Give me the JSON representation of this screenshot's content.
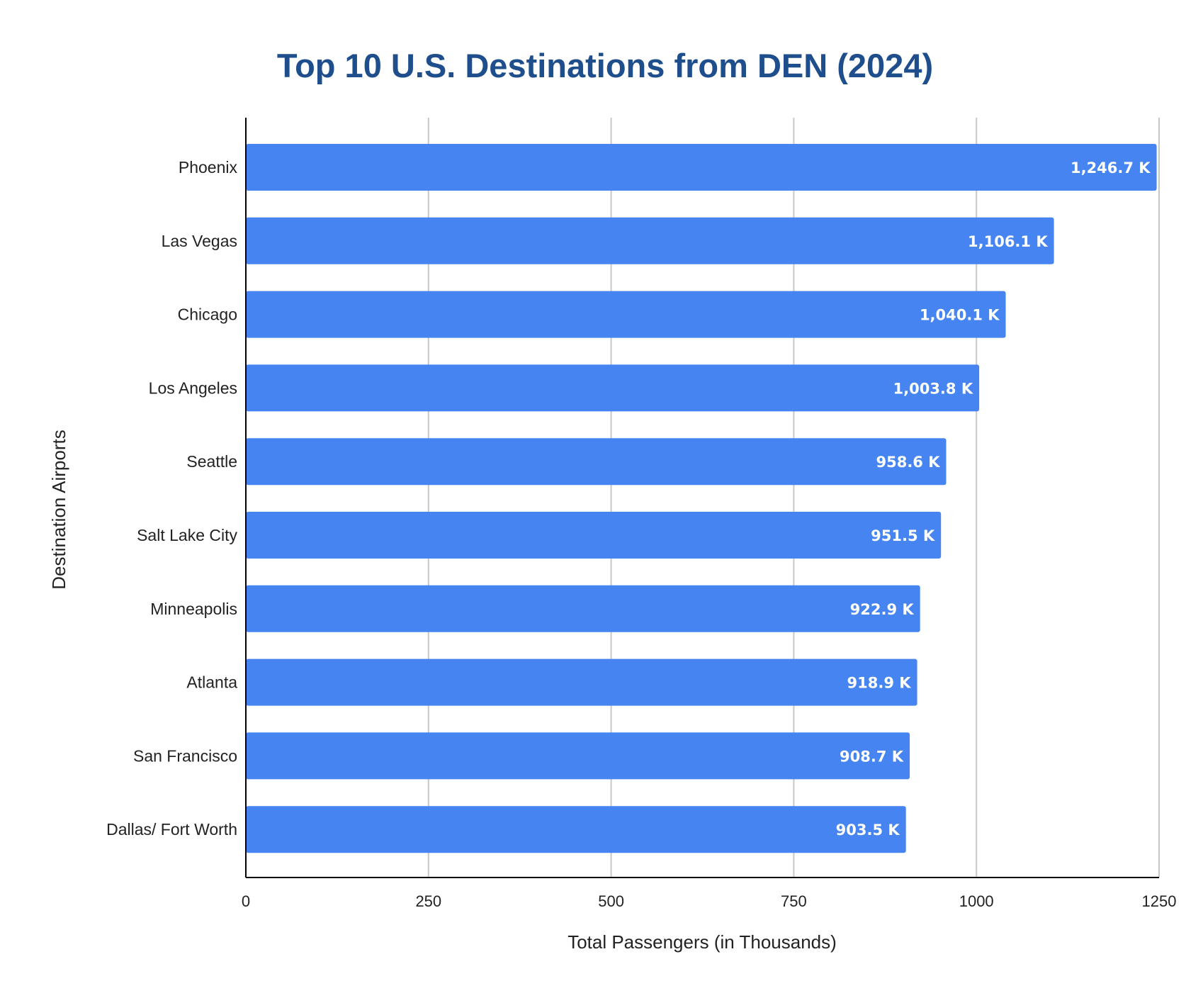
{
  "chart_data": {
    "type": "bar",
    "orientation": "horizontal",
    "title": "Top 10 U.S. Destinations from DEN (2024)",
    "xlabel": "Total Passengers (in Thousands)",
    "ylabel": "Destination Airports",
    "categories": [
      "Phoenix",
      "Las Vegas",
      "Chicago",
      "Los Angeles",
      "Seattle",
      "Salt Lake City",
      "Minneapolis",
      "Atlanta",
      "San Francisco",
      "Dallas/ Fort Worth"
    ],
    "values": [
      1246.7,
      1106.1,
      1040.1,
      1003.8,
      958.6,
      951.5,
      922.9,
      918.9,
      908.7,
      903.5
    ],
    "data_labels": [
      "1,246.7 K",
      "1,106.1 K",
      "1,040.1 K",
      "1,003.8 K",
      "958.6 K",
      "951.5 K",
      "922.9 K",
      "918.9 K",
      "908.7 K",
      "903.5 K"
    ],
    "xlim": [
      0,
      1250
    ],
    "xticks": [
      0,
      250,
      500,
      750,
      1000,
      1250
    ],
    "xtick_labels": [
      "0",
      "250",
      "500",
      "750",
      "1000",
      "1250"
    ],
    "grid": "vertical",
    "legend": "none",
    "colors": {
      "bar": "#4584f1",
      "title": "#1f4e8c",
      "grid": "#c8c8c8",
      "axis": "#000000",
      "text": "#222222",
      "data_label": "#ffffff"
    }
  }
}
